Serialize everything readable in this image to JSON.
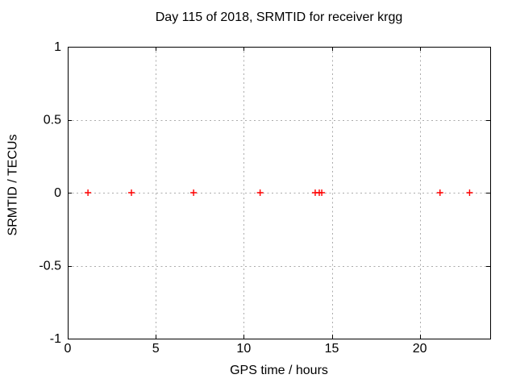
{
  "chart_data": {
    "type": "scatter",
    "title": "Day 115 of 2018, SRMTID for receiver krgg",
    "xlabel": "GPS time / hours",
    "ylabel": "SRMTID / TECUs",
    "xlim": [
      0,
      24
    ],
    "ylim": [
      -1,
      1
    ],
    "xticks": {
      "values": [
        0,
        5,
        10,
        15,
        20
      ],
      "labels": [
        "0",
        "5",
        "10",
        "15",
        "20"
      ]
    },
    "yticks": {
      "values": [
        1,
        0.5,
        0,
        -0.5,
        -1
      ],
      "labels": [
        "1",
        "0.5",
        "0",
        "-0.5",
        "-1"
      ]
    },
    "grid": true,
    "legend": "none",
    "series": [
      {
        "name": "SRMTID",
        "marker": "plus",
        "color": "#ff0000",
        "x": [
          1.15,
          3.62,
          7.15,
          10.93,
          14.06,
          14.29,
          14.43,
          21.15,
          22.83
        ],
        "y": [
          0,
          0,
          0,
          0,
          0,
          0,
          0,
          0,
          0
        ]
      }
    ]
  },
  "colors": {
    "background": "#ffffff",
    "axis": "#000000",
    "grid": "#ababab",
    "marker": "#ff0000"
  }
}
